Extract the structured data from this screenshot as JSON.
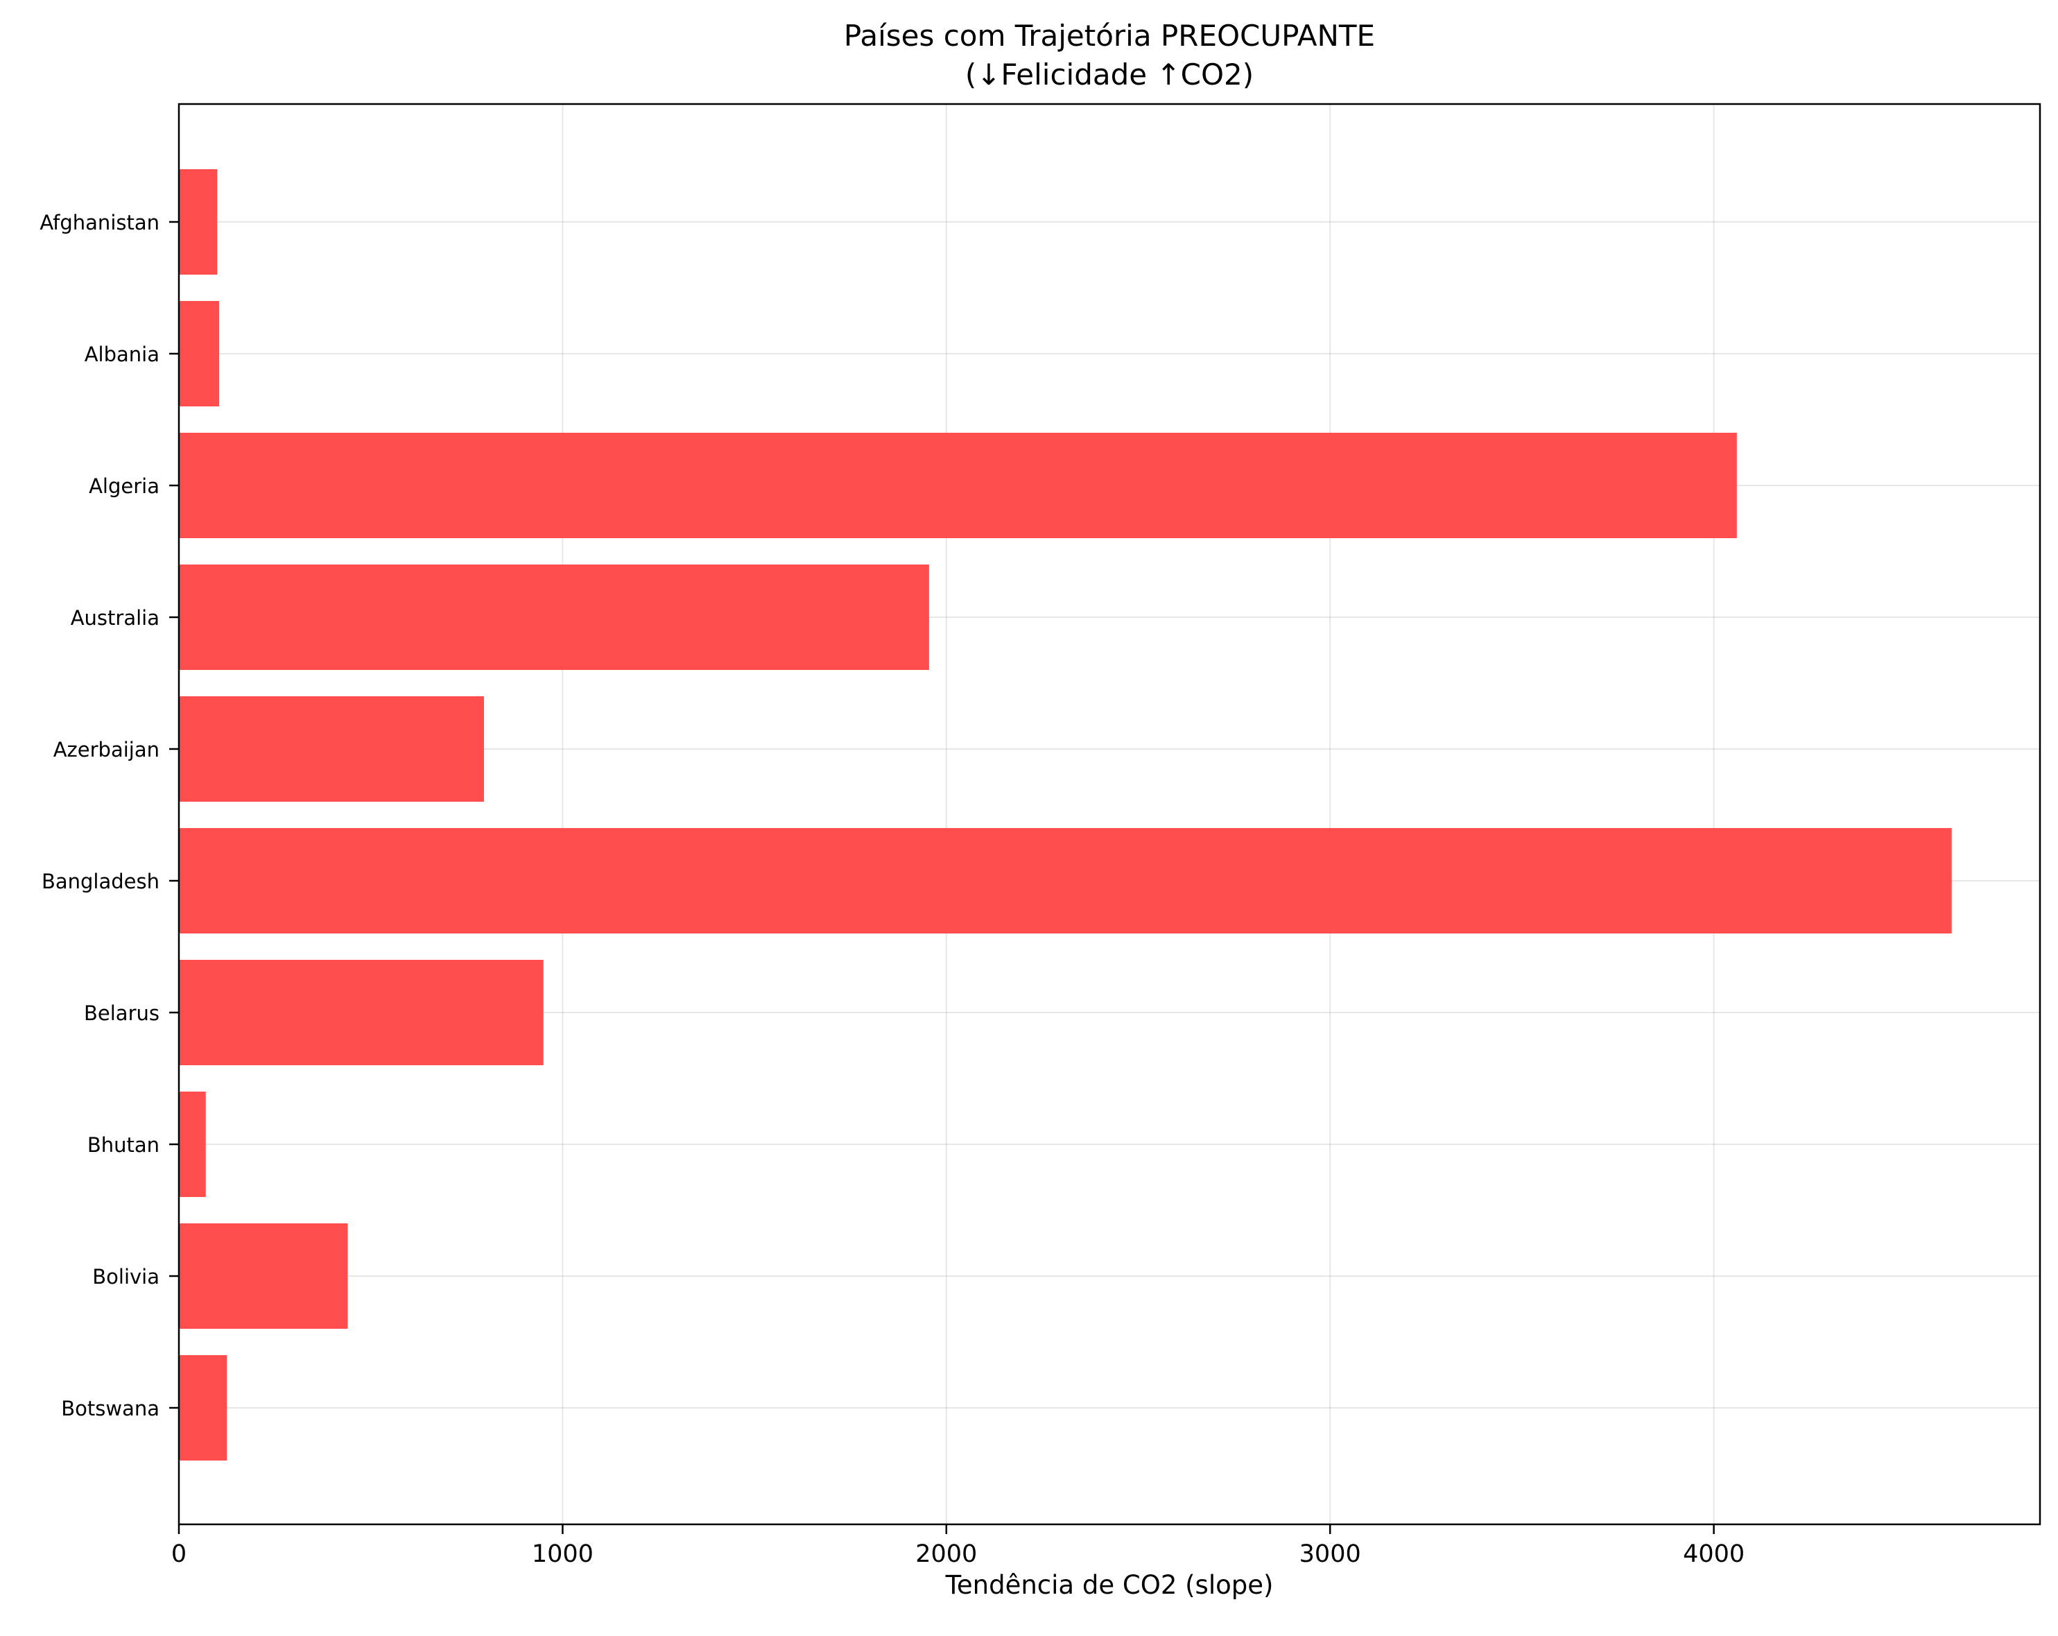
{
  "chart_data": {
    "type": "bar",
    "orientation": "horizontal",
    "title_line1": "Países com Trajetória PREOCUPANTE",
    "title_line2": "(↓Felicidade ↑CO2)",
    "xlabel": "Tendência de CO2 (slope)",
    "ylabel": "",
    "categories": [
      "Afghanistan",
      "Albania",
      "Algeria",
      "Australia",
      "Azerbaijan",
      "Bangladesh",
      "Belarus",
      "Bhutan",
      "Bolivia",
      "Botswana"
    ],
    "values": [
      100,
      105,
      4060,
      1955,
      795,
      4620,
      950,
      70,
      440,
      125
    ],
    "xlim": [
      0,
      4850
    ],
    "xticks": [
      0,
      1000,
      2000,
      3000,
      4000
    ],
    "xtick_labels": [
      "0",
      "1000",
      "2000",
      "3000",
      "4000"
    ],
    "grid": true,
    "bar_color": "#ff4d4d"
  }
}
